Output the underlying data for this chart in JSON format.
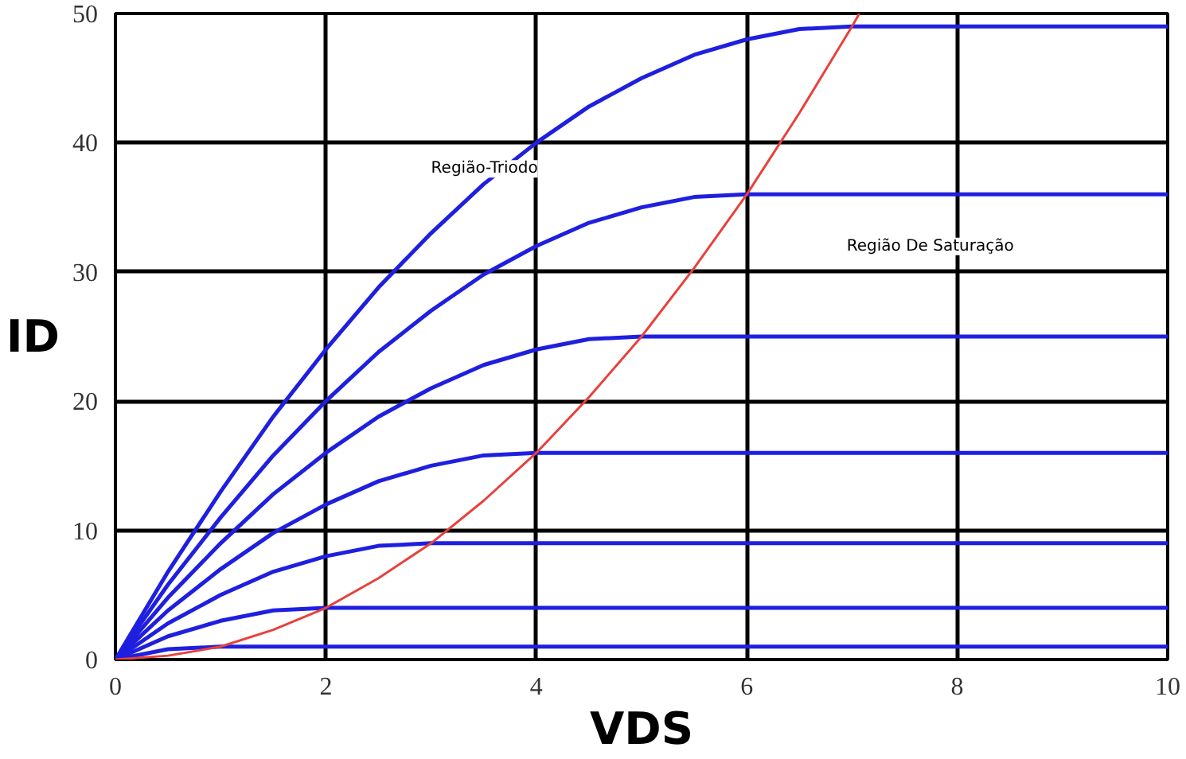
{
  "chart_data": {
    "type": "line",
    "xlabel": "VDS",
    "ylabel": "ID",
    "xlim": [
      0,
      10
    ],
    "ylim": [
      0,
      50
    ],
    "xticks": [
      0,
      2,
      4,
      6,
      8,
      10
    ],
    "yticks": [
      0,
      10,
      20,
      30,
      40,
      50
    ],
    "grid": true,
    "x": [
      0,
      0.5,
      1,
      1.5,
      2,
      2.5,
      3,
      3.5,
      4,
      4.5,
      5,
      5.5,
      6,
      6.5,
      7,
      7.5,
      8,
      8.5,
      9,
      9.5,
      10
    ],
    "series": [
      {
        "color": "#1f1fe0",
        "values": [
          0,
          0.8,
          1,
          1,
          1,
          1,
          1,
          1,
          1,
          1,
          1,
          1,
          1,
          1,
          1,
          1,
          1,
          1,
          1,
          1,
          1
        ]
      },
      {
        "color": "#1f1fe0",
        "values": [
          0,
          1.8,
          3,
          3.8,
          4,
          4,
          4,
          4,
          4,
          4,
          4,
          4,
          4,
          4,
          4,
          4,
          4,
          4,
          4,
          4,
          4
        ]
      },
      {
        "color": "#1f1fe0",
        "values": [
          0,
          2.8,
          5,
          6.8,
          8,
          8.8,
          9,
          9,
          9,
          9,
          9,
          9,
          9,
          9,
          9,
          9,
          9,
          9,
          9,
          9,
          9
        ]
      },
      {
        "color": "#1f1fe0",
        "values": [
          0,
          3.8,
          7,
          9.8,
          12,
          13.8,
          15,
          15.8,
          16,
          16,
          16,
          16,
          16,
          16,
          16,
          16,
          16,
          16,
          16,
          16,
          16
        ]
      },
      {
        "color": "#1f1fe0",
        "values": [
          0,
          4.8,
          9,
          12.8,
          16,
          18.8,
          21,
          22.8,
          24,
          24.8,
          25,
          25,
          25,
          25,
          25,
          25,
          25,
          25,
          25,
          25,
          25
        ]
      },
      {
        "color": "#1f1fe0",
        "values": [
          0,
          5.8,
          11,
          15.8,
          20,
          23.8,
          27,
          29.8,
          32,
          33.8,
          35,
          35.8,
          36,
          36,
          36,
          36,
          36,
          36,
          36,
          36,
          36
        ]
      },
      {
        "color": "#1f1fe0",
        "values": [
          0,
          6.8,
          13,
          18.8,
          24,
          28.8,
          33,
          36.8,
          40,
          42.8,
          45,
          46.8,
          48,
          48.8,
          49,
          49,
          49,
          49,
          49,
          49,
          49
        ]
      },
      {
        "color": "#e8413c",
        "type": "line",
        "x": [
          0,
          0.5,
          1,
          1.5,
          2,
          2.5,
          3,
          3.5,
          4,
          4.5,
          5,
          5.5,
          6,
          6.5,
          7,
          7.07
        ],
        "values": [
          0,
          0.3,
          1,
          2.3,
          4,
          6.3,
          9,
          12.3,
          16,
          20.3,
          25,
          30.3,
          36,
          42.3,
          49,
          50
        ]
      }
    ],
    "annotations": [
      "Região-Triodo",
      "Região  De Saturação"
    ]
  }
}
